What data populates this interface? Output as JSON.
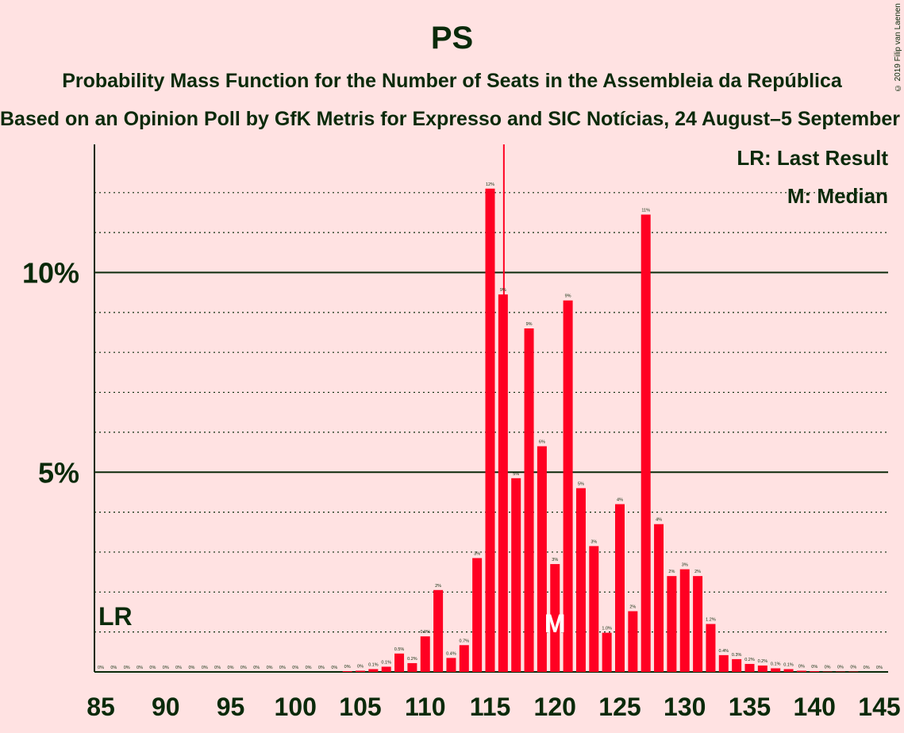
{
  "title": "PS",
  "subtitle": "Probability Mass Function for the Number of Seats in the Assembleia da República",
  "subtitle2": "Based on an Opinion Poll by GfK Metris for Expresso and SIC Notícias, 24 August–5 September 2019",
  "copyright": "© 2019 Filip van Laenen",
  "legend": {
    "last_result": "LR: Last Result",
    "median": "M: Median"
  },
  "colors": {
    "background": "#ffe2e2",
    "bar": "#ff0022",
    "text": "#0a2a0a",
    "marker_lr": "#ff0022"
  },
  "chart_data": {
    "type": "bar",
    "x": [
      85,
      86,
      87,
      88,
      89,
      90,
      91,
      92,
      93,
      94,
      95,
      96,
      97,
      98,
      99,
      100,
      101,
      102,
      103,
      104,
      105,
      106,
      107,
      108,
      109,
      110,
      111,
      112,
      113,
      114,
      115,
      116,
      117,
      118,
      119,
      120,
      121,
      122,
      123,
      124,
      125,
      126,
      127,
      128,
      129,
      130,
      131,
      132,
      133,
      134,
      135,
      136,
      137,
      138,
      139,
      140,
      141,
      142,
      143,
      144,
      145
    ],
    "values": [
      0,
      0,
      0,
      0,
      0,
      0,
      0,
      0,
      0,
      0,
      0,
      0,
      0,
      0,
      0,
      0,
      0,
      0,
      0,
      0.02,
      0.03,
      0.07,
      0.13,
      0.46,
      0.22,
      0.89,
      2.05,
      0.35,
      0.67,
      2.85,
      12.1,
      9.45,
      4.85,
      8.6,
      5.65,
      2.7,
      9.3,
      4.6,
      3.15,
      0.98,
      4.2,
      1.52,
      11.45,
      3.7,
      2.4,
      2.57,
      2.4,
      1.2,
      0.42,
      0.32,
      0.2,
      0.16,
      0.09,
      0.07,
      0.03,
      0.02,
      0.01,
      0.01,
      0.01,
      0,
      0
    ],
    "data_labels": [
      "0%",
      "0%",
      "0%",
      "0%",
      "0%",
      "0%",
      "0%",
      "0%",
      "0%",
      "0%",
      "0%",
      "0%",
      "0%",
      "0%",
      "0%",
      "0%",
      "0%",
      "0%",
      "0%",
      "0%",
      "0%",
      "0.1%",
      "0.1%",
      "0.5%",
      "0.2%",
      "0.9%",
      "2%",
      "0.4%",
      "0.7%",
      "3%",
      "12%",
      "9%",
      "5%",
      "9%",
      "6%",
      "3%",
      "9%",
      "5%",
      "3%",
      "1.0%",
      "4%",
      "2%",
      "11%",
      "4%",
      "2%",
      "3%",
      "2%",
      "1.2%",
      "0.4%",
      "0.3%",
      "0.2%",
      "0.2%",
      "0.1%",
      "0.1%",
      "0%",
      "0%",
      "0%",
      "0%",
      "0%",
      "0%",
      "0%"
    ],
    "xticks": [
      85,
      90,
      95,
      100,
      105,
      110,
      115,
      120,
      125,
      130,
      135,
      140,
      145
    ],
    "yticks": [
      0,
      5,
      10
    ],
    "ytick_labels": [
      "",
      "5%",
      "10%"
    ],
    "ylim": [
      0,
      13.2
    ],
    "xlim": [
      85,
      145
    ],
    "last_result": 116,
    "last_result_label": "LR",
    "median": 120,
    "median_label": "M",
    "grid": "dotted minor at every 1%, solid at 5% and 10%"
  }
}
